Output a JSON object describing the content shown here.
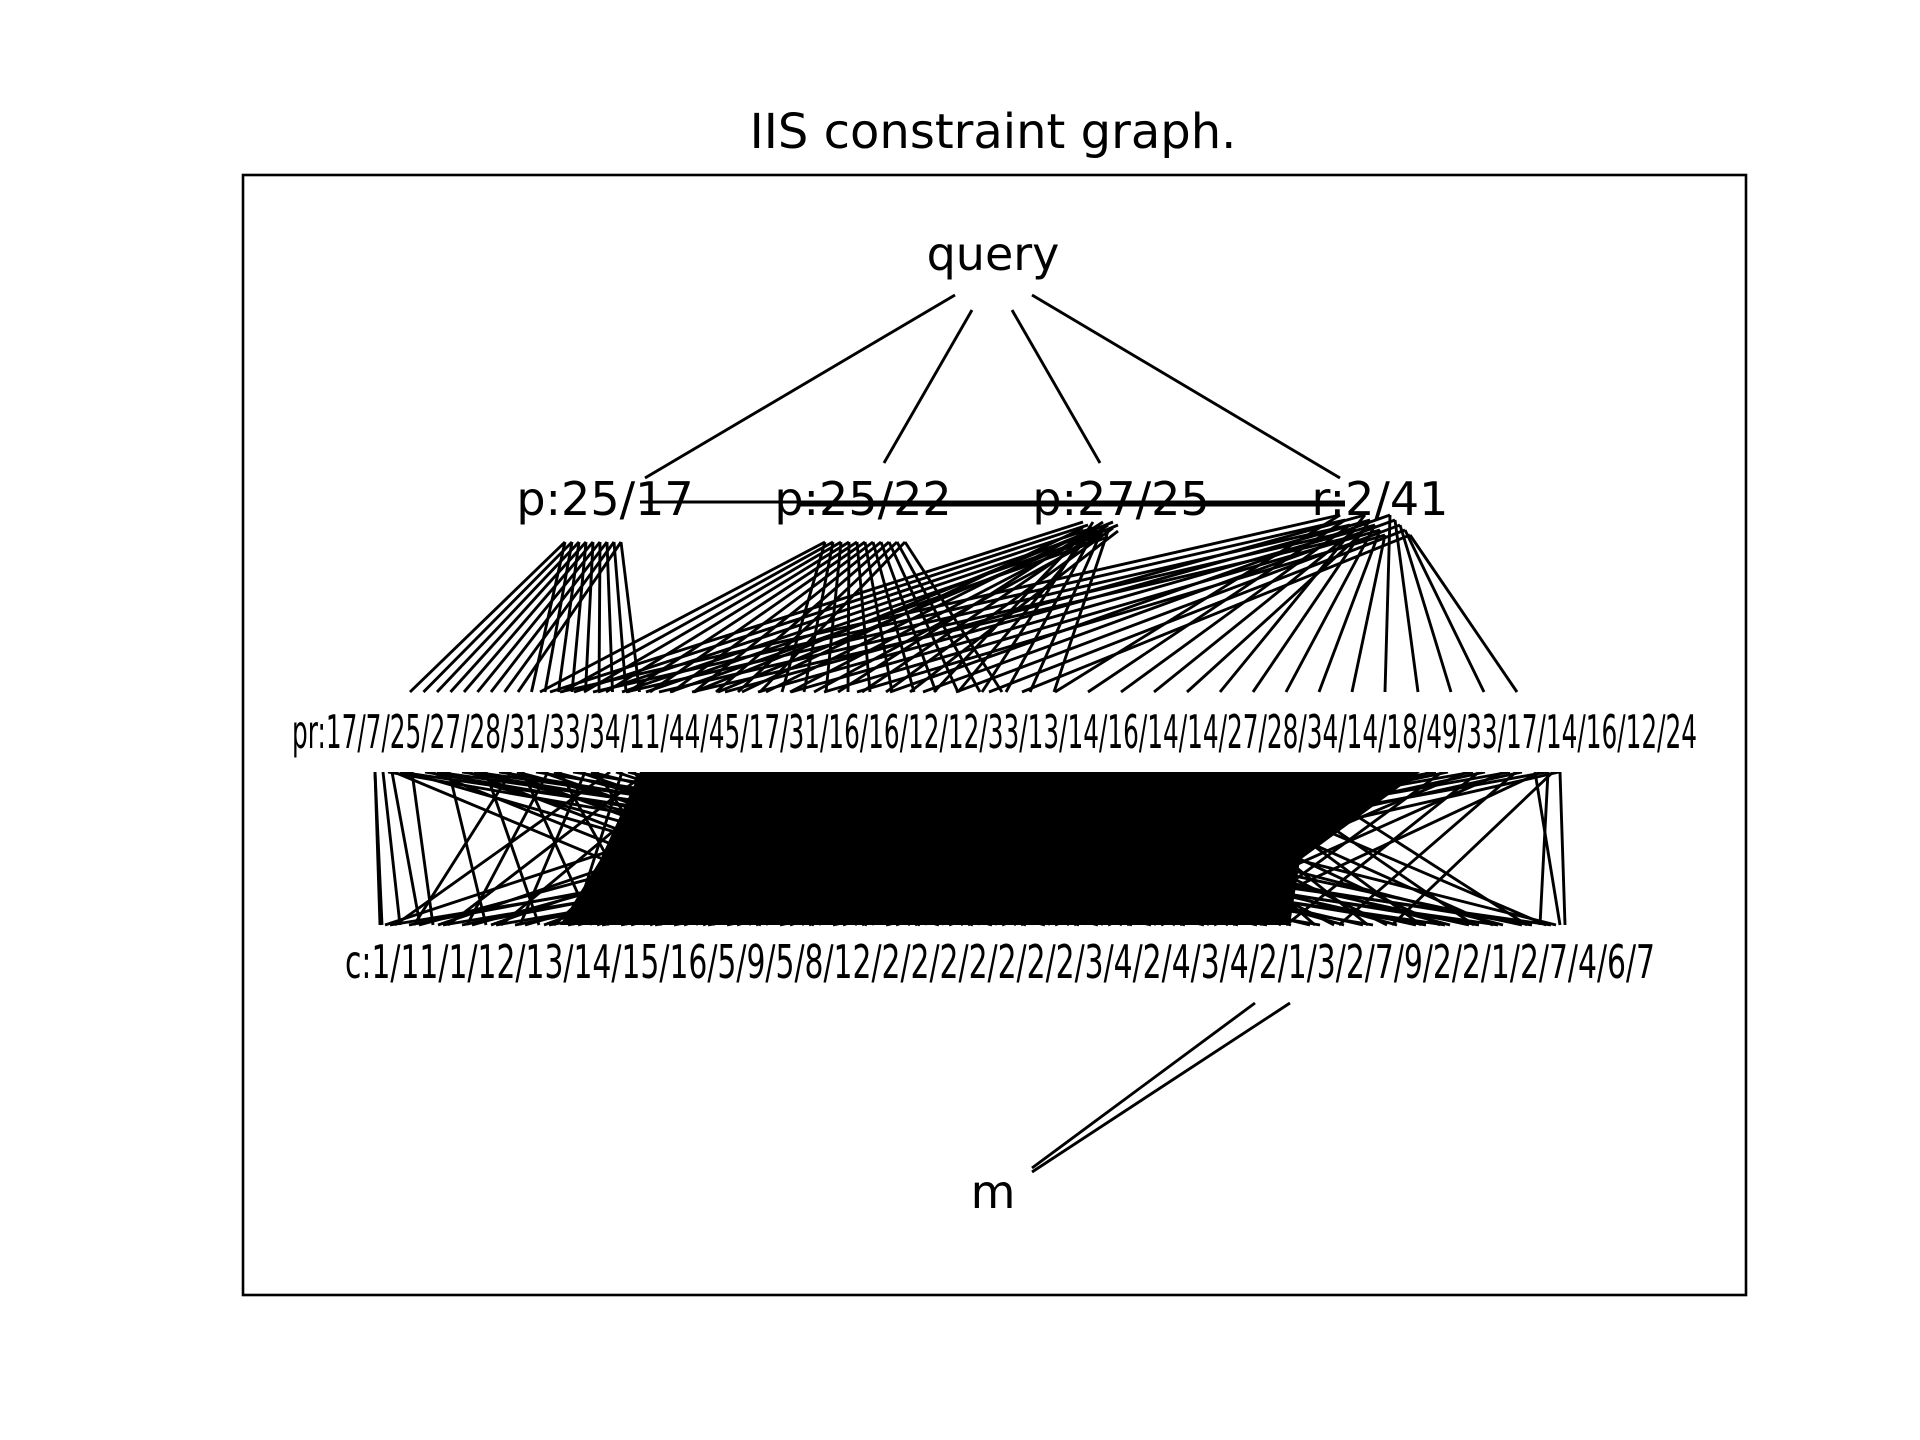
{
  "title": "IIS constraint graph.",
  "graph": {
    "root": "query",
    "level1": [
      "p:25/17",
      "p:25/22",
      "p:27/25",
      "r:2/41"
    ],
    "level2_visible_label_fragments": "pr:17/7/25/27/28/31/33/34/11/44/45/17/31/16/16/12/12/33/13/14/16/14/14/27/28/34/14/18/49/33/17/14/16/12/24",
    "level3_visible_label_fragments": "c:1/11/1/12/13/14/15/16/5/9/5/8/12/2/2/2/2/2/2/2/3/4/2/4/3/4/2/1/3/2/7/9/2/2/1/2/7/4/6/7",
    "sink": "m"
  }
}
